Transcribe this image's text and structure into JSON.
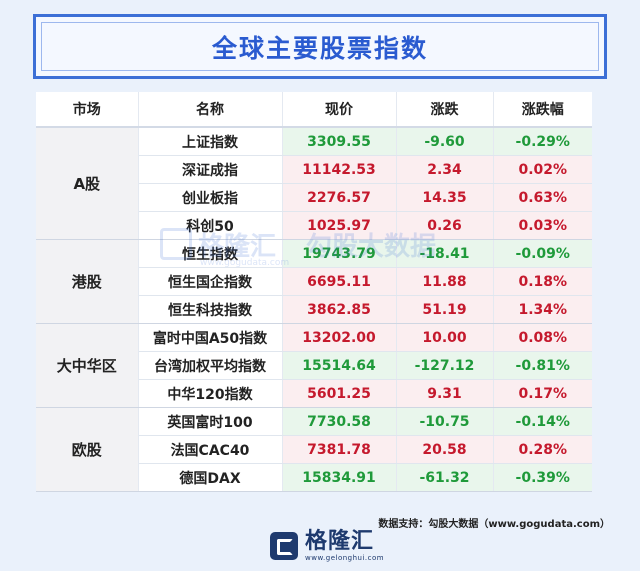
{
  "title": "全球主要股票指数",
  "headers": [
    "市场",
    "名称",
    "现价",
    "涨跌",
    "涨跌幅"
  ],
  "groups": [
    {
      "market": "A股",
      "rows": [
        {
          "name": "上证指数",
          "price": "3309.55",
          "change": "-9.60",
          "pct": "-0.29%",
          "dir": "down"
        },
        {
          "name": "深证成指",
          "price": "11142.53",
          "change": "2.34",
          "pct": "0.02%",
          "dir": "up"
        },
        {
          "name": "创业板指",
          "price": "2276.57",
          "change": "14.35",
          "pct": "0.63%",
          "dir": "up"
        },
        {
          "name": "科创50",
          "price": "1025.97",
          "change": "0.26",
          "pct": "0.03%",
          "dir": "up"
        }
      ]
    },
    {
      "market": "港股",
      "rows": [
        {
          "name": "恒生指数",
          "price": "19743.79",
          "change": "-18.41",
          "pct": "-0.09%",
          "dir": "down"
        },
        {
          "name": "恒生国企指数",
          "price": "6695.11",
          "change": "11.88",
          "pct": "0.18%",
          "dir": "up"
        },
        {
          "name": "恒生科技指数",
          "price": "3862.85",
          "change": "51.19",
          "pct": "1.34%",
          "dir": "up"
        }
      ]
    },
    {
      "market": "大中华区",
      "rows": [
        {
          "name": "富时中国A50指数",
          "price": "13202.00",
          "change": "10.00",
          "pct": "0.08%",
          "dir": "up"
        },
        {
          "name": "台湾加权平均指数",
          "price": "15514.64",
          "change": "-127.12",
          "pct": "-0.81%",
          "dir": "down"
        },
        {
          "name": "中华120指数",
          "price": "5601.25",
          "change": "9.31",
          "pct": "0.17%",
          "dir": "up"
        }
      ]
    },
    {
      "market": "欧股",
      "rows": [
        {
          "name": "英国富时100",
          "price": "7730.58",
          "change": "-10.75",
          "pct": "-0.14%",
          "dir": "down"
        },
        {
          "name": "法国CAC40",
          "price": "7381.78",
          "change": "20.58",
          "pct": "0.28%",
          "dir": "up"
        },
        {
          "name": "德国DAX",
          "price": "15834.91",
          "change": "-61.32",
          "pct": "-0.39%",
          "dir": "down"
        }
      ]
    }
  ],
  "watermark": {
    "brand": "格隆汇",
    "partner": "勾股大数据",
    "url": "www.gogudata.com"
  },
  "source": "数据支持：勾股大数据（www.gogudata.com）",
  "footer": {
    "brand": "格隆汇",
    "url": "www.gelonghui.com"
  },
  "colors": {
    "up": "#c5192d",
    "down": "#1f9a3a",
    "accent": "#3c6fd6"
  },
  "icons": [
    "gelonghui-logo-icon"
  ]
}
